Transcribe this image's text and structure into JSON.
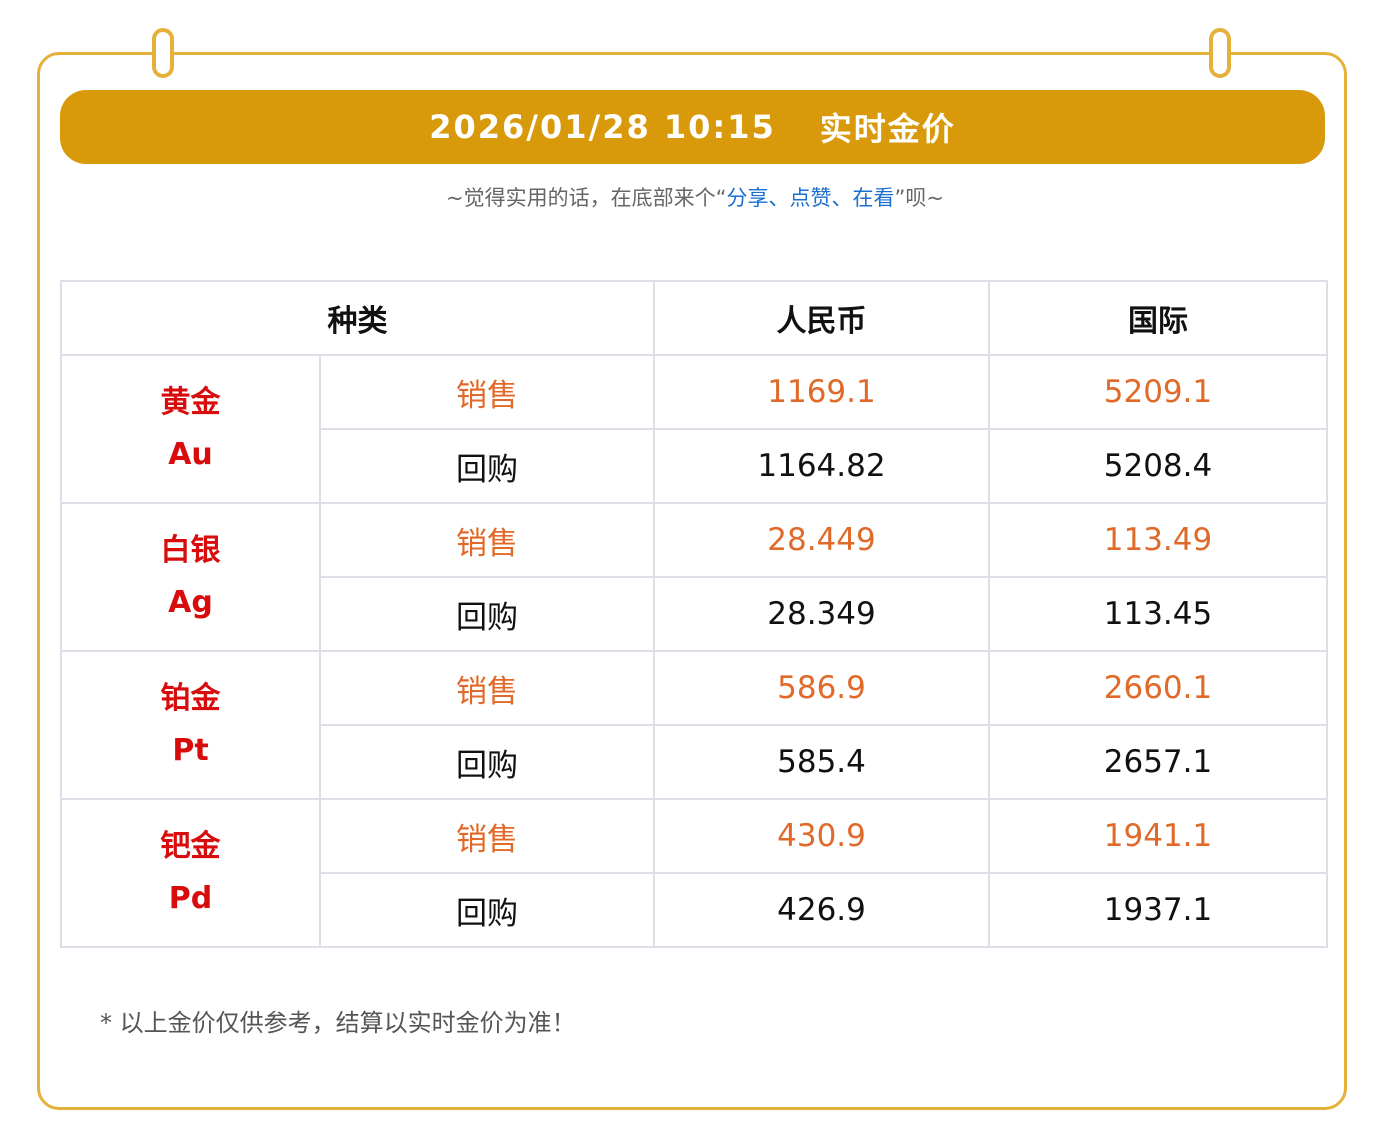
{
  "header": {
    "datetime": "2026/01/28 10:15",
    "title": "实时金价"
  },
  "subtitle": {
    "prefix": "~觉得实用的话，在底部来个“",
    "share": "分享",
    "sep1": "、",
    "like": "点赞",
    "sep2": "、",
    "view": "在看",
    "suffix": "”呗~"
  },
  "table": {
    "headers": {
      "type": "种类",
      "rmb": "人民币",
      "intl": "国际"
    },
    "metals": [
      {
        "name": "黄金",
        "symbol": "Au",
        "rows": [
          {
            "label": "销售",
            "rmb": "1169.1",
            "intl": "5209.1"
          },
          {
            "label": "回购",
            "rmb": "1164.82",
            "intl": "5208.4"
          }
        ]
      },
      {
        "name": "白银",
        "symbol": "Ag",
        "rows": [
          {
            "label": "销售",
            "rmb": "28.449",
            "intl": "113.49"
          },
          {
            "label": "回购",
            "rmb": "28.349",
            "intl": "113.45"
          }
        ]
      },
      {
        "name": "铂金",
        "symbol": "Pt",
        "rows": [
          {
            "label": "销售",
            "rmb": "586.9",
            "intl": "2660.1"
          },
          {
            "label": "回购",
            "rmb": "585.4",
            "intl": "2657.1"
          }
        ]
      },
      {
        "name": "钯金",
        "symbol": "Pd",
        "rows": [
          {
            "label": "销售",
            "rmb": "430.9",
            "intl": "1941.1"
          },
          {
            "label": "回购",
            "rmb": "426.9",
            "intl": "1937.1"
          }
        ]
      }
    ]
  },
  "note": "* 以上金价仅供参考，结算以实时金价为准！",
  "colors": {
    "accent": "#d89a0b",
    "frame": "#e6b13a",
    "metal_name": "#d80c0c",
    "sell_price": "#e06a2a",
    "link": "#1a6fd0"
  }
}
